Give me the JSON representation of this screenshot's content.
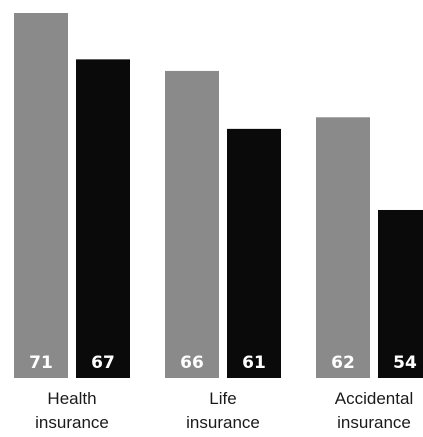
{
  "chart_data": {
    "type": "bar",
    "categories": [
      [
        "Health",
        "insurance"
      ],
      [
        "Life",
        "insurance"
      ],
      [
        "Accidental",
        "insurance"
      ]
    ],
    "series": [
      {
        "values": [
          71,
          66,
          62
        ],
        "color": "#8a8a8a"
      },
      {
        "values": [
          67,
          61,
          54
        ],
        "color": "#0a0a0a"
      }
    ],
    "title": "",
    "xlabel": "",
    "ylabel": "",
    "ylim": [
      39.5,
      71
    ],
    "grid": false,
    "legend": "none",
    "value_labels": "inside-bottom"
  }
}
